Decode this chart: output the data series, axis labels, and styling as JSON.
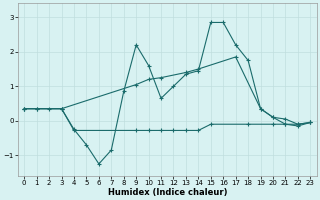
{
  "xlabel": "Humidex (Indice chaleur)",
  "bg_color": "#d8f2f2",
  "grid_color": "#c0dede",
  "line_color": "#1a6b6b",
  "xlim": [
    -0.5,
    23.5
  ],
  "ylim": [
    -1.6,
    3.4
  ],
  "yticks": [
    -1,
    0,
    1,
    2,
    3
  ],
  "xticks": [
    0,
    1,
    2,
    3,
    4,
    5,
    6,
    7,
    8,
    9,
    10,
    11,
    12,
    13,
    14,
    15,
    16,
    17,
    18,
    19,
    20,
    21,
    22,
    23
  ],
  "line1_x": [
    0,
    1,
    2,
    3,
    4,
    5,
    6,
    7,
    8,
    9,
    10,
    11,
    12,
    13,
    14,
    15,
    16,
    17,
    18,
    19,
    20,
    21,
    22,
    23
  ],
  "line1_y": [
    0.35,
    0.35,
    0.35,
    0.35,
    -0.25,
    -0.7,
    -1.25,
    -0.85,
    0.85,
    2.2,
    1.6,
    0.65,
    1.0,
    1.35,
    1.45,
    2.85,
    2.85,
    2.2,
    1.75,
    0.35,
    0.1,
    -0.1,
    -0.15,
    -0.05
  ],
  "line2_x": [
    0,
    3,
    4,
    9,
    10,
    11,
    12,
    13,
    14,
    15,
    18,
    20,
    21,
    22,
    23
  ],
  "line2_y": [
    0.35,
    0.35,
    -0.28,
    -0.28,
    -0.28,
    -0.28,
    -0.28,
    -0.28,
    -0.28,
    -0.1,
    -0.1,
    -0.1,
    -0.1,
    -0.1,
    -0.05
  ],
  "line3_x": [
    0,
    1,
    3,
    9,
    10,
    11,
    13,
    14,
    17,
    19,
    20,
    21,
    22,
    23
  ],
  "line3_y": [
    0.35,
    0.35,
    0.35,
    1.05,
    1.2,
    1.25,
    1.4,
    1.5,
    1.85,
    0.35,
    0.1,
    0.05,
    -0.1,
    -0.05
  ]
}
